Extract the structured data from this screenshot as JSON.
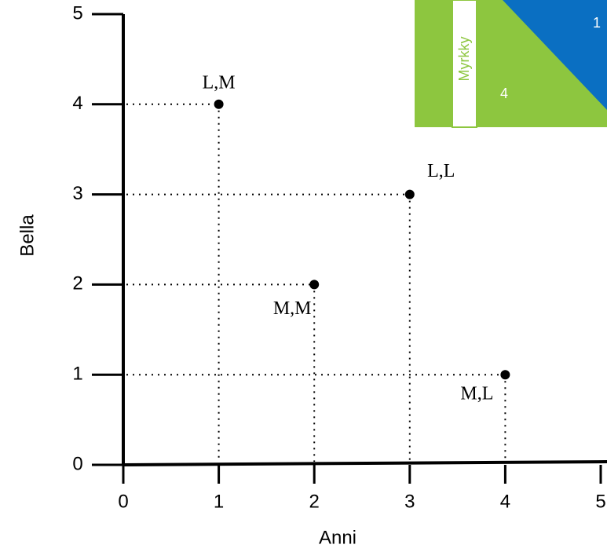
{
  "chart_data": {
    "type": "scatter",
    "xlabel": "Anni",
    "ylabel": "Bella",
    "x": [
      1,
      3,
      2,
      4
    ],
    "values": [
      4,
      3,
      2,
      1
    ],
    "point_labels": [
      "L,M",
      "L,L",
      "M,M",
      "M,L"
    ],
    "color": "#000000",
    "xlim": [
      0,
      5
    ],
    "ylim": [
      0,
      5
    ],
    "xticks": [
      0,
      1,
      2,
      3,
      4,
      5
    ],
    "yticks": [
      0,
      1,
      2,
      3,
      4,
      5
    ],
    "inset_labels": [
      "Myrkky",
      "4",
      "1"
    ]
  }
}
